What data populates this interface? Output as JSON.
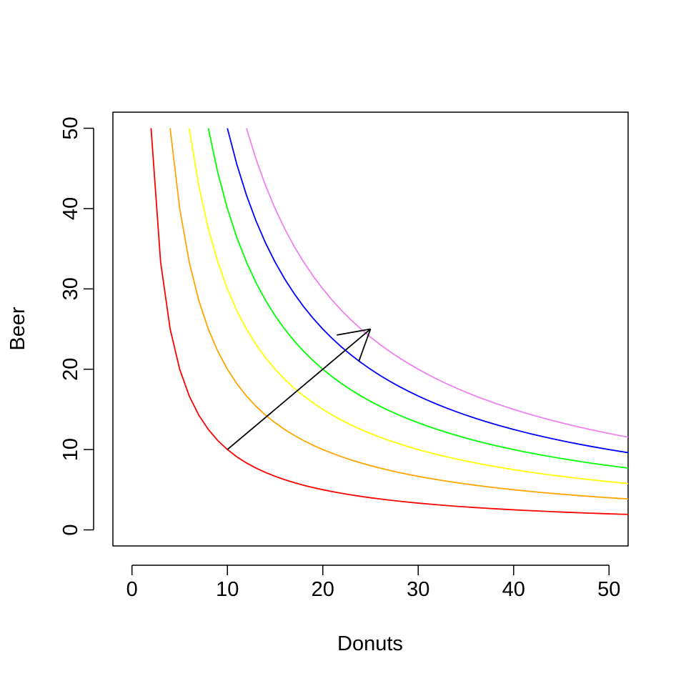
{
  "chart_data": {
    "type": "line",
    "title": "",
    "xlabel": "Donuts",
    "ylabel": "Beer",
    "xlim": [
      -2,
      52
    ],
    "ylim": [
      -2,
      52
    ],
    "x_ticks": [
      0,
      10,
      20,
      30,
      40,
      50
    ],
    "y_ticks": [
      0,
      10,
      20,
      30,
      40,
      50
    ],
    "grid": false,
    "legend": "none",
    "series": [
      {
        "color": "#ff0000",
        "utility": 100,
        "x_start": 2,
        "x_end": 52
      },
      {
        "color": "#ffa500",
        "utility": 200,
        "x_start": 4,
        "x_end": 52
      },
      {
        "color": "#ffff00",
        "utility": 300,
        "x_start": 6,
        "x_end": 52
      },
      {
        "color": "#00ff00",
        "utility": 400,
        "x_start": 8,
        "x_end": 52
      },
      {
        "color": "#0000ff",
        "utility": 500,
        "x_start": 10,
        "x_end": 52
      },
      {
        "color": "#ee82ee",
        "utility": 600,
        "x_start": 12,
        "x_end": 52
      }
    ],
    "arrow": {
      "from": [
        10,
        10
      ],
      "to": [
        25,
        25
      ],
      "color": "#000000"
    }
  }
}
